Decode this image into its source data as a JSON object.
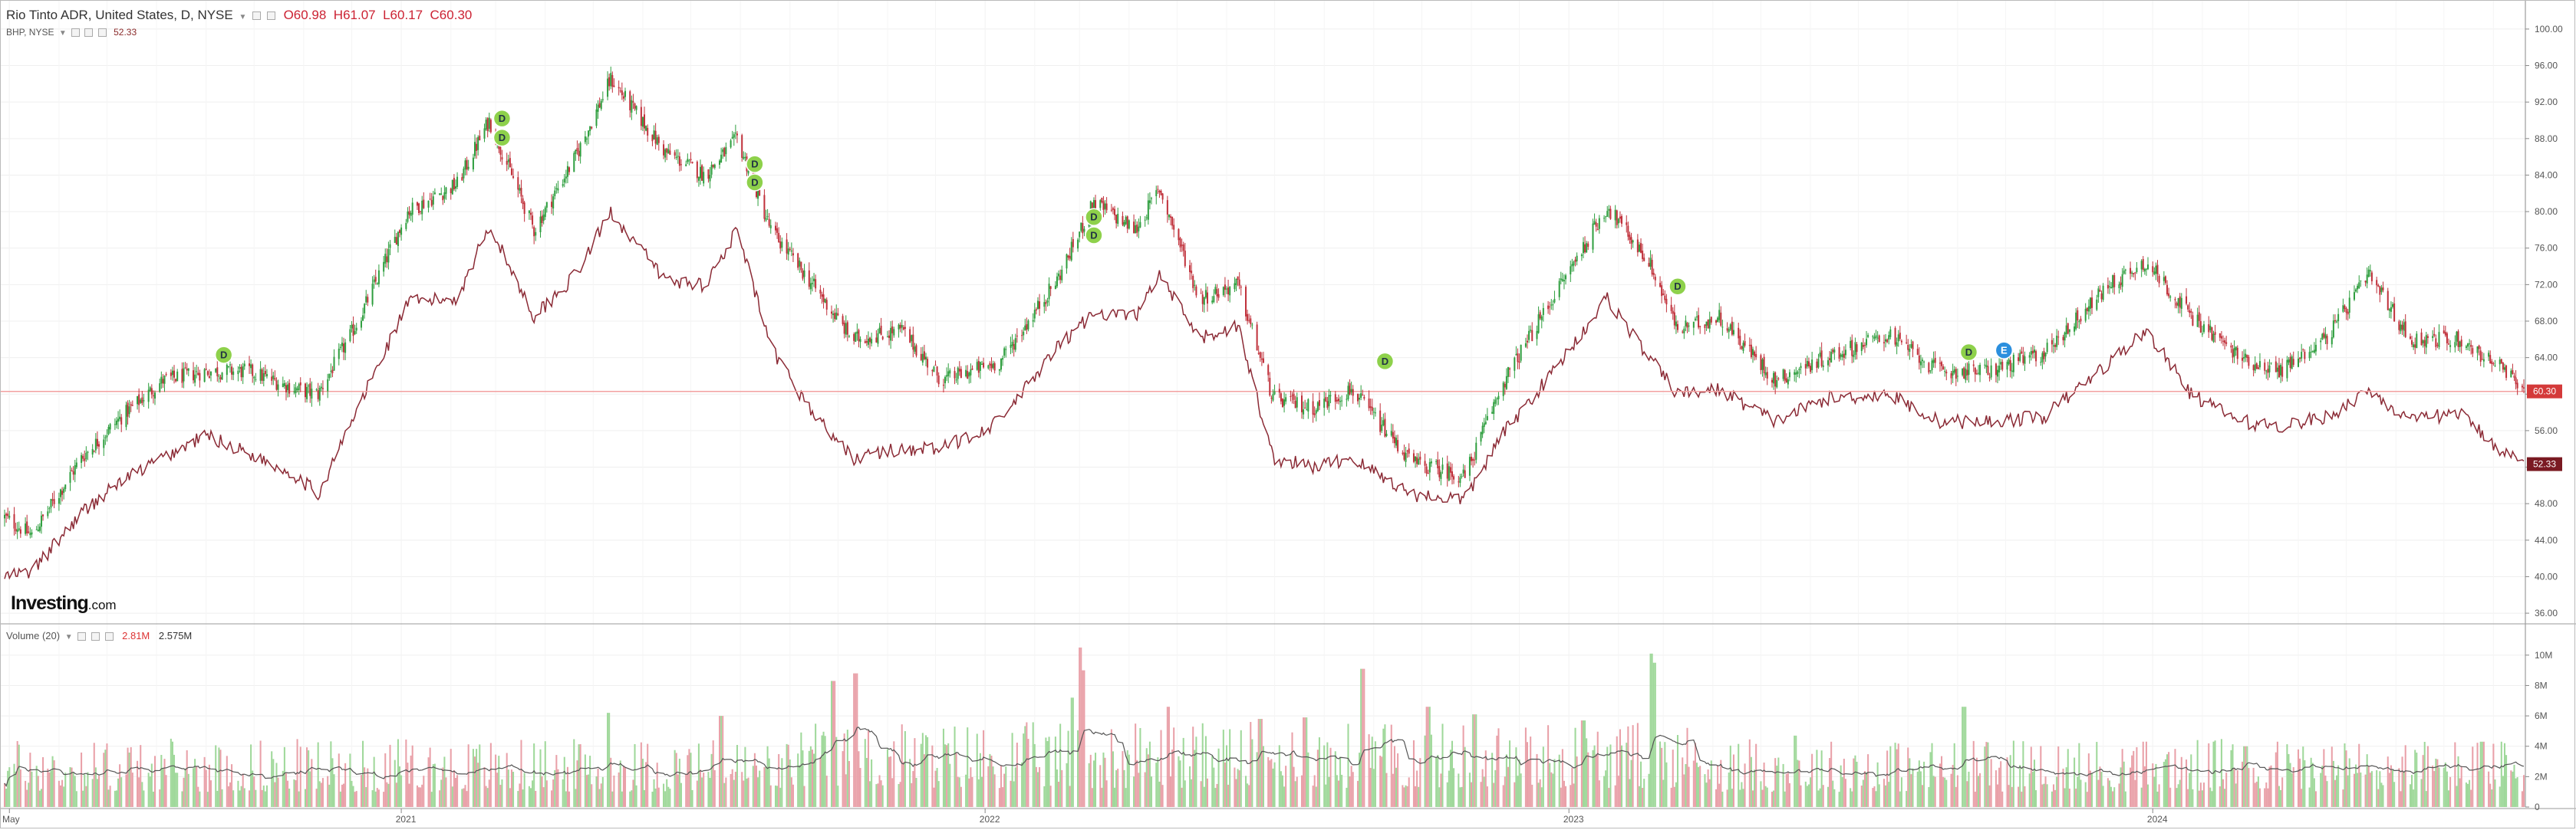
{
  "legend": {
    "title": "Rio Tinto ADR, United States, D, NYSE",
    "open": "O60.98",
    "high": "H61.07",
    "low": "L60.17",
    "close": "C60.30",
    "compare_title": "BHP, NYSE",
    "compare_value": "52.33",
    "volume_title": "Volume (20)",
    "volume_value": "2.81M",
    "volume_ma_value": "2.575M"
  },
  "logo": {
    "brand": "Investing",
    "suffix": ".com"
  },
  "colors": {
    "up": "#2e9e3e",
    "down": "#c0303a",
    "compare_line": "#8b2a35",
    "price_line": "#f2a0a0",
    "last_price_bg": "#d43a3a",
    "compare_bg": "#7a1a22",
    "volume_up": "#9fd89a",
    "volume_down": "#e9a0a8",
    "volume_ma": "#555555",
    "event_marker": "#8ed14b",
    "event_marker_alt": "#2b8fde",
    "grid": "#efefef"
  },
  "chart_data": [
    {
      "type": "candlestick",
      "title": "Rio Tinto ADR, United States, D, NYSE",
      "price_axis_ticks": [
        "100.00",
        "96.00",
        "92.00",
        "88.00",
        "84.00",
        "80.00",
        "76.00",
        "72.00",
        "68.00",
        "64.00",
        "60.00",
        "56.00",
        "52.00",
        "48.00",
        "44.00",
        "40.00",
        "36.00"
      ],
      "ylim": [
        35,
        101
      ],
      "x_axis_labels": [
        "May",
        "2021",
        "2022",
        "2023",
        "2024"
      ],
      "x_axis_label_dates": [
        "2020-05-01",
        "2021-01-01",
        "2022-01-01",
        "2023-01-01",
        "2024-01-01"
      ],
      "date_range": [
        "2020-04-28",
        "2024-08-20"
      ],
      "last_price_label": "60.30",
      "compare_label": "52.33",
      "series": [
        {
          "name": "Rio Tinto ADR",
          "kind": "candles",
          "anchors": [
            {
              "date": "2020-04-28",
              "close": 46.5
            },
            {
              "date": "2020-05-15",
              "close": 44.5
            },
            {
              "date": "2020-06-15",
              "close": 53.0
            },
            {
              "date": "2020-07-10",
              "close": 57.5
            },
            {
              "date": "2020-08-05",
              "close": 61.5
            },
            {
              "date": "2020-09-01",
              "close": 62.5
            },
            {
              "date": "2020-09-28",
              "close": 62.5
            },
            {
              "date": "2020-10-28",
              "close": 60.5
            },
            {
              "date": "2020-11-10",
              "close": 60.0
            },
            {
              "date": "2020-12-05",
              "close": 68.0
            },
            {
              "date": "2021-01-05",
              "close": 80.0
            },
            {
              "date": "2021-02-05",
              "close": 83.0
            },
            {
              "date": "2021-02-25",
              "close": 90.0
            },
            {
              "date": "2021-03-25",
              "close": 78.0
            },
            {
              "date": "2021-04-20",
              "close": 86.0
            },
            {
              "date": "2021-05-12",
              "close": 94.5
            },
            {
              "date": "2021-06-15",
              "close": 86.5
            },
            {
              "date": "2021-07-10",
              "close": 84.0
            },
            {
              "date": "2021-07-30",
              "close": 88.0
            },
            {
              "date": "2021-08-20",
              "close": 78.0
            },
            {
              "date": "2021-09-15",
              "close": 72.0
            },
            {
              "date": "2021-10-10",
              "close": 66.0
            },
            {
              "date": "2021-11-10",
              "close": 67.0
            },
            {
              "date": "2021-12-05",
              "close": 61.5
            },
            {
              "date": "2022-01-10",
              "close": 63.5
            },
            {
              "date": "2022-02-15",
              "close": 72.5
            },
            {
              "date": "2022-03-10",
              "close": 81.0
            },
            {
              "date": "2022-04-05",
              "close": 78.0
            },
            {
              "date": "2022-04-20",
              "close": 82.5
            },
            {
              "date": "2022-05-15",
              "close": 70.5
            },
            {
              "date": "2022-06-08",
              "close": 72.0
            },
            {
              "date": "2022-06-30",
              "close": 59.5
            },
            {
              "date": "2022-07-25",
              "close": 58.5
            },
            {
              "date": "2022-08-18",
              "close": 60.5
            },
            {
              "date": "2022-09-25",
              "close": 52.5
            },
            {
              "date": "2022-10-28",
              "close": 51.0
            },
            {
              "date": "2022-11-20",
              "close": 61.0
            },
            {
              "date": "2022-12-20",
              "close": 70.0
            },
            {
              "date": "2023-01-25",
              "close": 80.5
            },
            {
              "date": "2023-02-20",
              "close": 74.5
            },
            {
              "date": "2023-03-10",
              "close": 67.0
            },
            {
              "date": "2023-04-05",
              "close": 68.5
            },
            {
              "date": "2023-05-10",
              "close": 61.5
            },
            {
              "date": "2023-06-10",
              "close": 64.0
            },
            {
              "date": "2023-07-20",
              "close": 66.5
            },
            {
              "date": "2023-08-20",
              "close": 62.5
            },
            {
              "date": "2023-09-20",
              "close": 62.5
            },
            {
              "date": "2023-10-25",
              "close": 64.5
            },
            {
              "date": "2023-12-05",
              "close": 72.0
            },
            {
              "date": "2023-12-28",
              "close": 74.5
            },
            {
              "date": "2024-01-25",
              "close": 68.5
            },
            {
              "date": "2024-02-25",
              "close": 64.0
            },
            {
              "date": "2024-03-20",
              "close": 62.5
            },
            {
              "date": "2024-04-20",
              "close": 66.5
            },
            {
              "date": "2024-05-15",
              "close": 73.0
            },
            {
              "date": "2024-06-10",
              "close": 66.0
            },
            {
              "date": "2024-07-10",
              "close": 66.0
            },
            {
              "date": "2024-08-05",
              "close": 63.0
            },
            {
              "date": "2024-08-20",
              "close": 60.3
            }
          ]
        },
        {
          "name": "BHP, NYSE",
          "kind": "line",
          "anchors": [
            {
              "date": "2020-04-28",
              "value": 40.0
            },
            {
              "date": "2020-05-15",
              "value": 40.5
            },
            {
              "date": "2020-06-15",
              "value": 47.0
            },
            {
              "date": "2020-07-10",
              "value": 50.5
            },
            {
              "date": "2020-08-05",
              "value": 53.0
            },
            {
              "date": "2020-09-01",
              "value": 55.5
            },
            {
              "date": "2020-09-28",
              "value": 53.5
            },
            {
              "date": "2020-10-28",
              "value": 51.0
            },
            {
              "date": "2020-11-10",
              "value": 49.0
            },
            {
              "date": "2020-12-05",
              "value": 58.5
            },
            {
              "date": "2021-01-05",
              "value": 70.0
            },
            {
              "date": "2021-02-05",
              "value": 70.5
            },
            {
              "date": "2021-02-25",
              "value": 78.5
            },
            {
              "date": "2021-03-25",
              "value": 68.5
            },
            {
              "date": "2021-04-20",
              "value": 73.0
            },
            {
              "date": "2021-05-12",
              "value": 80.0
            },
            {
              "date": "2021-06-15",
              "value": 72.5
            },
            {
              "date": "2021-07-10",
              "value": 72.0
            },
            {
              "date": "2021-07-30",
              "value": 78.0
            },
            {
              "date": "2021-08-20",
              "value": 65.0
            },
            {
              "date": "2021-09-15",
              "value": 58.0
            },
            {
              "date": "2021-10-10",
              "value": 53.0
            },
            {
              "date": "2021-11-10",
              "value": 54.0
            },
            {
              "date": "2021-12-05",
              "value": 54.0
            },
            {
              "date": "2022-01-10",
              "value": 57.0
            },
            {
              "date": "2022-02-15",
              "value": 65.0
            },
            {
              "date": "2022-03-10",
              "value": 69.0
            },
            {
              "date": "2022-04-05",
              "value": 68.5
            },
            {
              "date": "2022-04-20",
              "value": 73.0
            },
            {
              "date": "2022-05-15",
              "value": 66.0
            },
            {
              "date": "2022-06-08",
              "value": 67.5
            },
            {
              "date": "2022-06-30",
              "value": 53.0
            },
            {
              "date": "2022-07-25",
              "value": 52.0
            },
            {
              "date": "2022-08-18",
              "value": 53.0
            },
            {
              "date": "2022-09-25",
              "value": 49.0
            },
            {
              "date": "2022-10-28",
              "value": 48.5
            },
            {
              "date": "2022-11-20",
              "value": 55.5
            },
            {
              "date": "2022-12-20",
              "value": 62.0
            },
            {
              "date": "2023-01-25",
              "value": 70.5
            },
            {
              "date": "2023-02-20",
              "value": 64.0
            },
            {
              "date": "2023-03-10",
              "value": 60.0
            },
            {
              "date": "2023-04-05",
              "value": 60.5
            },
            {
              "date": "2023-05-10",
              "value": 57.0
            },
            {
              "date": "2023-06-10",
              "value": 59.5
            },
            {
              "date": "2023-07-20",
              "value": 60.0
            },
            {
              "date": "2023-08-20",
              "value": 57.0
            },
            {
              "date": "2023-09-20",
              "value": 57.0
            },
            {
              "date": "2023-10-25",
              "value": 57.5
            },
            {
              "date": "2023-12-05",
              "value": 63.5
            },
            {
              "date": "2023-12-28",
              "value": 67.0
            },
            {
              "date": "2024-01-25",
              "value": 60.0
            },
            {
              "date": "2024-02-25",
              "value": 57.0
            },
            {
              "date": "2024-03-20",
              "value": 56.5
            },
            {
              "date": "2024-04-20",
              "value": 57.5
            },
            {
              "date": "2024-05-15",
              "value": 60.5
            },
            {
              "date": "2024-06-10",
              "value": 57.0
            },
            {
              "date": "2024-07-10",
              "value": 58.0
            },
            {
              "date": "2024-08-05",
              "value": 54.0
            },
            {
              "date": "2024-08-20",
              "value": 52.33
            }
          ]
        }
      ],
      "events": [
        {
          "date": "2020-09-12",
          "value": 64.3,
          "label": "D"
        },
        {
          "date": "2021-03-05",
          "value": 90.2,
          "label": "D"
        },
        {
          "date": "2021-03-05",
          "value": 88.1,
          "label": "D"
        },
        {
          "date": "2021-08-10",
          "value": 85.2,
          "label": "D"
        },
        {
          "date": "2021-08-10",
          "value": 83.2,
          "label": "D"
        },
        {
          "date": "2022-03-10",
          "value": 79.4,
          "label": "D"
        },
        {
          "date": "2022-03-10",
          "value": 77.4,
          "label": "D"
        },
        {
          "date": "2022-09-08",
          "value": 63.6,
          "label": "D"
        },
        {
          "date": "2023-03-10",
          "value": 71.8,
          "label": "D"
        },
        {
          "date": "2023-09-08",
          "value": 64.6,
          "label": "D"
        },
        {
          "date": "2023-09-30",
          "value": 64.8,
          "label": "E",
          "alt": true
        }
      ]
    },
    {
      "type": "bar",
      "title": "Volume (20)",
      "volume_axis_ticks": [
        "10M",
        "8M",
        "6M",
        "4M",
        "2M",
        "0"
      ],
      "ylim": [
        0,
        11
      ],
      "units": "M",
      "typical_volume_range": [
        1.0,
        4.5
      ],
      "moving_average": {
        "name": "Volume (20)",
        "period": 20,
        "last_value": "2.575M"
      },
      "spikes": [
        {
          "date": "2021-05-10",
          "value": 6.2
        },
        {
          "date": "2021-07-20",
          "value": 6.0
        },
        {
          "date": "2021-09-28",
          "value": 8.3
        },
        {
          "date": "2021-10-12",
          "value": 8.8
        },
        {
          "date": "2022-02-25",
          "value": 7.2
        },
        {
          "date": "2022-03-02",
          "value": 10.5
        },
        {
          "date": "2022-03-04",
          "value": 9.0
        },
        {
          "date": "2022-04-25",
          "value": 6.6
        },
        {
          "date": "2022-06-22",
          "value": 5.8
        },
        {
          "date": "2022-07-20",
          "value": 5.9
        },
        {
          "date": "2022-08-25",
          "value": 9.1
        },
        {
          "date": "2022-10-05",
          "value": 6.6
        },
        {
          "date": "2022-11-03",
          "value": 6.1
        },
        {
          "date": "2023-01-10",
          "value": 5.7
        },
        {
          "date": "2023-02-22",
          "value": 10.1
        },
        {
          "date": "2023-02-24",
          "value": 9.5
        },
        {
          "date": "2023-05-22",
          "value": 4.7
        },
        {
          "date": "2023-09-05",
          "value": 6.6
        },
        {
          "date": "2024-02-28",
          "value": 4.0
        },
        {
          "date": "2024-07-25",
          "value": 4.3
        }
      ]
    }
  ]
}
